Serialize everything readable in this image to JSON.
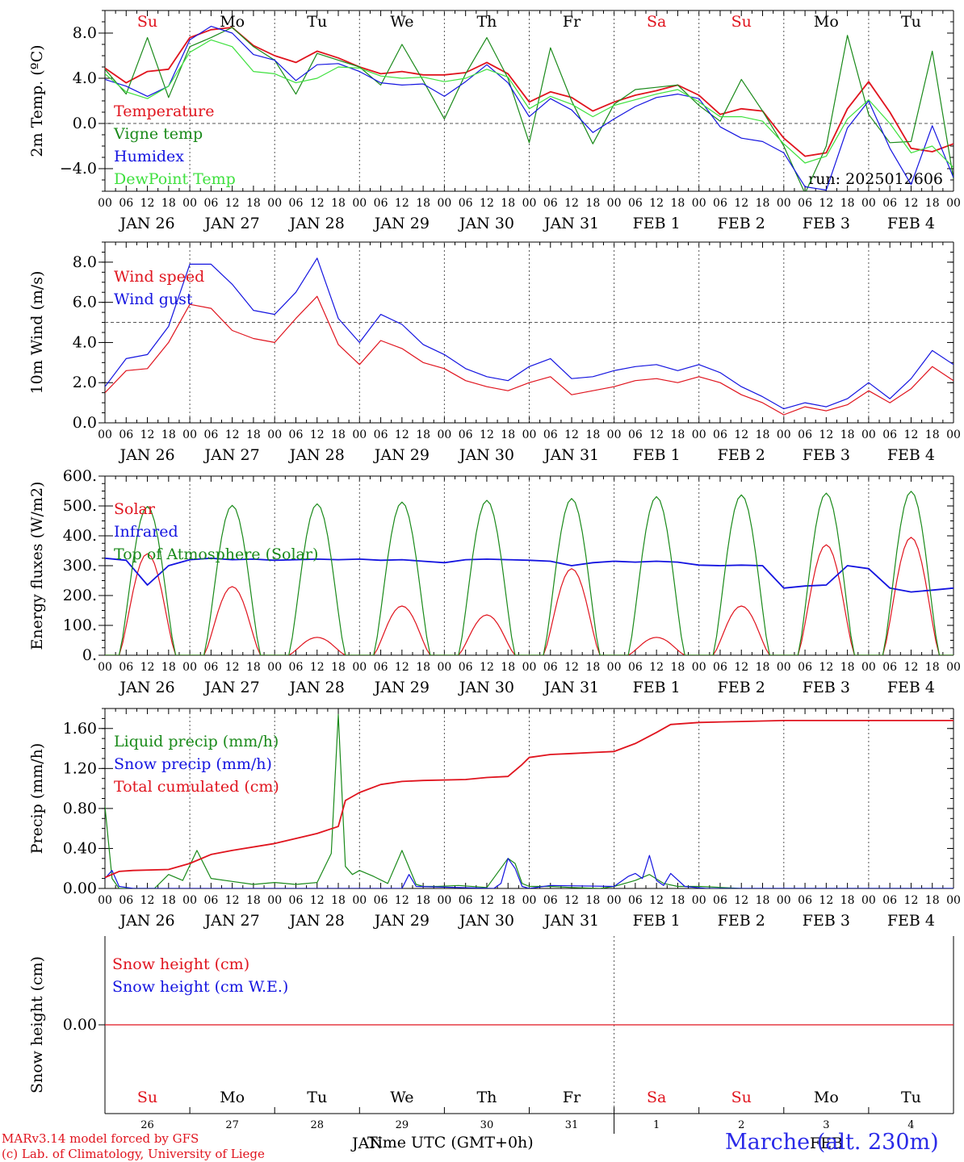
{
  "chart_data": [
    {
      "type": "line",
      "ylabel": "2m Temp. (ºC)",
      "yticks": [
        -4.0,
        0.0,
        4.0,
        8.0
      ],
      "ylim": [
        -6.0,
        10.0
      ],
      "ref_line": 0.0,
      "x_unit": "hours since JAN 26 00 UTC",
      "annotation": "run: 2025012606",
      "legend": [
        "Temperature",
        "Vigne temp",
        "Humidex",
        "DewPoint Temp"
      ],
      "series": [
        {
          "name": "Temperature",
          "color": "#e0141e",
          "x": [
            0,
            6,
            12,
            18,
            24,
            30,
            36,
            42,
            48,
            54,
            60,
            66,
            72,
            78,
            84,
            90,
            96,
            102,
            108,
            114,
            120,
            126,
            132,
            138,
            144,
            150,
            156,
            162,
            168,
            174,
            180,
            186,
            192,
            198,
            204,
            210,
            216,
            222,
            228,
            234,
            240
          ],
          "y": [
            4.9,
            3.6,
            4.6,
            4.8,
            7.6,
            8.3,
            8.5,
            6.9,
            6.0,
            5.4,
            6.4,
            5.8,
            5.0,
            4.4,
            4.6,
            4.3,
            4.3,
            4.5,
            5.4,
            4.4,
            1.9,
            2.8,
            2.3,
            1.1,
            1.9,
            2.5,
            2.9,
            3.4,
            2.5,
            0.8,
            1.3,
            1.1,
            -1.3,
            -2.9,
            -2.6,
            1.3,
            3.7,
            1.0,
            -2.2,
            -2.5,
            -1.8
          ]
        },
        {
          "name": "Vigne temp",
          "color": "#1a8a1a",
          "x": [
            0,
            6,
            12,
            18,
            24,
            30,
            36,
            42,
            48,
            54,
            60,
            66,
            72,
            78,
            84,
            90,
            96,
            102,
            108,
            114,
            120,
            126,
            132,
            138,
            144,
            150,
            156,
            162,
            168,
            174,
            180,
            186,
            192,
            198,
            204,
            210,
            216,
            222,
            228,
            234,
            240
          ],
          "y": [
            4.8,
            2.6,
            7.6,
            2.3,
            6.8,
            7.6,
            8.5,
            6.8,
            5.6,
            2.6,
            6.2,
            5.6,
            5.0,
            3.4,
            7.0,
            3.8,
            0.4,
            4.4,
            7.6,
            4.0,
            -1.7,
            6.7,
            2.0,
            -1.8,
            1.7,
            3.0,
            3.2,
            3.4,
            1.6,
            0.2,
            3.9,
            1.1,
            -2.0,
            -6.2,
            -2.0,
            7.8,
            0.8,
            -1.7,
            -1.6,
            6.4,
            -4.9
          ]
        },
        {
          "name": "Humidex",
          "color": "#1414e0",
          "x": [
            0,
            6,
            12,
            18,
            24,
            30,
            36,
            42,
            48,
            54,
            60,
            66,
            72,
            78,
            84,
            90,
            96,
            102,
            108,
            114,
            120,
            126,
            132,
            138,
            144,
            150,
            156,
            162,
            168,
            174,
            180,
            186,
            192,
            198,
            204,
            210,
            216,
            222,
            228,
            234,
            240
          ],
          "y": [
            3.9,
            3.3,
            2.4,
            3.3,
            7.4,
            8.6,
            8.0,
            6.1,
            5.6,
            3.8,
            5.2,
            5.3,
            4.6,
            3.6,
            3.4,
            3.5,
            2.4,
            3.7,
            5.2,
            3.6,
            0.6,
            2.2,
            1.2,
            -0.8,
            0.4,
            1.5,
            2.3,
            2.6,
            2.2,
            -0.3,
            -1.3,
            -1.6,
            -2.6,
            -5.6,
            -5.9,
            -0.4,
            2.0,
            -2.2,
            -5.4,
            -0.2,
            -4.8
          ]
        },
        {
          "name": "DewPoint Temp",
          "color": "#3ee03e",
          "x": [
            0,
            6,
            12,
            18,
            24,
            30,
            36,
            42,
            48,
            54,
            60,
            66,
            72,
            78,
            84,
            90,
            96,
            102,
            108,
            114,
            120,
            126,
            132,
            138,
            144,
            150,
            156,
            162,
            168,
            174,
            180,
            186,
            192,
            198,
            204,
            210,
            216,
            222,
            228,
            234,
            240
          ],
          "y": [
            4.4,
            2.8,
            2.2,
            3.3,
            6.3,
            7.4,
            6.8,
            4.6,
            4.4,
            3.6,
            4.0,
            5.0,
            4.9,
            4.2,
            4.0,
            4.1,
            3.7,
            4.0,
            4.8,
            4.1,
            1.3,
            2.4,
            1.7,
            0.6,
            1.6,
            2.1,
            2.6,
            3.0,
            1.9,
            0.6,
            0.6,
            0.2,
            -1.8,
            -3.5,
            -2.9,
            0.4,
            2.1,
            0.0,
            -2.6,
            -2.0,
            -3.9
          ]
        }
      ]
    },
    {
      "type": "line",
      "ylabel": "10m Wind (m/s)",
      "yticks": [
        0.0,
        2.0,
        4.0,
        6.0,
        8.0
      ],
      "ylim": [
        0.0,
        9.0
      ],
      "ref_line": 5.0,
      "legend": [
        "Wind speed",
        "Wind gust"
      ],
      "series": [
        {
          "name": "Wind speed",
          "color": "#e0141e",
          "x": [
            0,
            6,
            12,
            18,
            24,
            30,
            36,
            42,
            48,
            54,
            60,
            66,
            72,
            78,
            84,
            90,
            96,
            102,
            108,
            114,
            120,
            126,
            132,
            138,
            144,
            150,
            156,
            162,
            168,
            174,
            180,
            186,
            192,
            198,
            204,
            210,
            216,
            222,
            228,
            234,
            240
          ],
          "y": [
            1.5,
            2.6,
            2.7,
            4.0,
            5.9,
            5.7,
            4.6,
            4.2,
            4.0,
            5.2,
            6.3,
            3.9,
            2.9,
            4.1,
            3.7,
            3.0,
            2.7,
            2.1,
            1.8,
            1.6,
            2.0,
            2.3,
            1.4,
            1.6,
            1.8,
            2.1,
            2.2,
            2.0,
            2.3,
            2.0,
            1.4,
            1.0,
            0.4,
            0.8,
            0.6,
            0.9,
            1.6,
            1.0,
            1.7,
            2.8,
            2.1
          ]
        },
        {
          "name": "Wind gust",
          "color": "#1414e0",
          "x": [
            0,
            6,
            12,
            18,
            24,
            30,
            36,
            42,
            48,
            54,
            60,
            66,
            72,
            78,
            84,
            90,
            96,
            102,
            108,
            114,
            120,
            126,
            132,
            138,
            144,
            150,
            156,
            162,
            168,
            174,
            180,
            186,
            192,
            198,
            204,
            210,
            216,
            222,
            228,
            234,
            240
          ],
          "y": [
            1.8,
            3.2,
            3.4,
            4.8,
            7.9,
            7.9,
            6.9,
            5.6,
            5.4,
            6.5,
            8.2,
            5.2,
            4.0,
            5.4,
            4.9,
            3.9,
            3.4,
            2.7,
            2.3,
            2.1,
            2.8,
            3.2,
            2.2,
            2.3,
            2.6,
            2.8,
            2.9,
            2.6,
            2.9,
            2.5,
            1.8,
            1.3,
            0.7,
            1.0,
            0.8,
            1.2,
            2.0,
            1.2,
            2.2,
            3.6,
            2.9
          ]
        }
      ]
    },
    {
      "type": "line",
      "ylabel": "Energy fluxes (W/m2)",
      "yticks": [
        0,
        100,
        200,
        300,
        400,
        500,
        600
      ],
      "ytick_labels": [
        "0.",
        "100.",
        "200.",
        "300.",
        "400.",
        "500.",
        "600."
      ],
      "ylim": [
        0,
        600
      ],
      "legend": [
        "Solar",
        "Infrared",
        "Top of Atmosphere (Solar)"
      ],
      "series": [
        {
          "name": "Solar",
          "color": "#e0141e",
          "peaks": [
            340,
            230,
            60,
            165,
            135,
            290,
            60,
            165,
            370,
            395
          ],
          "peak_hour": 12
        },
        {
          "name": "Infrared",
          "color": "#1414e0",
          "x": [
            0,
            6,
            12,
            18,
            24,
            30,
            36,
            42,
            48,
            54,
            60,
            66,
            72,
            78,
            84,
            90,
            96,
            102,
            108,
            114,
            120,
            126,
            132,
            138,
            144,
            150,
            156,
            162,
            168,
            174,
            180,
            186,
            192,
            198,
            204,
            210,
            216,
            222,
            228,
            234,
            240
          ],
          "y": [
            325,
            318,
            235,
            300,
            320,
            325,
            320,
            322,
            318,
            320,
            322,
            320,
            322,
            318,
            320,
            315,
            310,
            320,
            322,
            320,
            318,
            315,
            300,
            310,
            315,
            312,
            315,
            312,
            302,
            300,
            302,
            300,
            225,
            232,
            235,
            300,
            290,
            225,
            212,
            218,
            225
          ]
        },
        {
          "name": "Top of Atmosphere (Solar)",
          "color": "#1a8a1a",
          "peaks": [
            498,
            502,
            507,
            513,
            519,
            525,
            531,
            537,
            543,
            549
          ],
          "peak_hour": 12
        }
      ]
    },
    {
      "type": "line",
      "ylabel": "Precip (mm/h)",
      "yticks": [
        0.0,
        0.4,
        0.8,
        1.2,
        1.6
      ],
      "ytick_labels": [
        "0.00",
        "0.40",
        "0.80",
        "1.20",
        "1.60"
      ],
      "ylim": [
        0.0,
        1.8
      ],
      "legend": [
        "Liquid precip (mm/h)",
        "Snow precip (mm/h)",
        "Total cumulated (cm)"
      ],
      "series": [
        {
          "name": "Liquid precip (mm/h)",
          "color": "#1a8a1a",
          "x": [
            0,
            2,
            4,
            8,
            14,
            18,
            22,
            26,
            30,
            36,
            42,
            48,
            54,
            60,
            64,
            66,
            68,
            70,
            72,
            76,
            80,
            84,
            88,
            90,
            94,
            100,
            108,
            114,
            116,
            118,
            120,
            126,
            132,
            140,
            144,
            150,
            154,
            158,
            162,
            168,
            180,
            192,
            240
          ],
          "y": [
            0.82,
            0.1,
            0.0,
            0.0,
            0.0,
            0.14,
            0.08,
            0.38,
            0.1,
            0.07,
            0.04,
            0.06,
            0.04,
            0.06,
            0.35,
            1.74,
            0.22,
            0.14,
            0.18,
            0.12,
            0.05,
            0.38,
            0.04,
            0.02,
            0.02,
            0.03,
            0.01,
            0.3,
            0.25,
            0.05,
            0.02,
            0.02,
            0.01,
            0.0,
            0.02,
            0.08,
            0.14,
            0.05,
            0.02,
            0.02,
            0.0,
            0.0,
            0.0
          ]
        },
        {
          "name": "Snow precip (mm/h)",
          "color": "#1414e0",
          "x": [
            0,
            2,
            4,
            8,
            84,
            86,
            88,
            110,
            112,
            114,
            116,
            118,
            120,
            126,
            144,
            148,
            150,
            152,
            154,
            156,
            158,
            160,
            164,
            170,
            240
          ],
          "y": [
            0.1,
            0.18,
            0.02,
            0.0,
            0.0,
            0.14,
            0.02,
            0.0,
            0.05,
            0.3,
            0.2,
            0.02,
            0.0,
            0.03,
            0.02,
            0.12,
            0.15,
            0.1,
            0.33,
            0.08,
            0.03,
            0.15,
            0.02,
            0.0,
            0.0
          ]
        },
        {
          "name": "Total cumulated (cm)",
          "color": "#e0141e",
          "x": [
            0,
            4,
            8,
            18,
            24,
            30,
            36,
            48,
            60,
            66,
            68,
            72,
            78,
            84,
            90,
            102,
            108,
            114,
            118,
            120,
            126,
            132,
            138,
            144,
            150,
            156,
            160,
            168,
            180,
            192,
            240
          ],
          "y": [
            0.11,
            0.17,
            0.18,
            0.19,
            0.25,
            0.34,
            0.38,
            0.45,
            0.55,
            0.62,
            0.88,
            0.96,
            1.04,
            1.07,
            1.08,
            1.09,
            1.11,
            1.12,
            1.24,
            1.31,
            1.34,
            1.35,
            1.36,
            1.37,
            1.45,
            1.56,
            1.64,
            1.66,
            1.67,
            1.68,
            1.68
          ]
        }
      ]
    },
    {
      "type": "line",
      "ylabel": "Snow height (cm)",
      "yticks": [
        0.0
      ],
      "ytick_labels": [
        "0.00"
      ],
      "legend": [
        "Snow height (cm)",
        "Snow height (cm W.E.)"
      ],
      "series": [
        {
          "name": "Snow height (cm)",
          "color": "#e0141e",
          "x": [
            0,
            240
          ],
          "y": [
            0,
            0
          ]
        }
      ]
    }
  ],
  "x_axis": {
    "hour_labels": [
      "00",
      "06",
      "12",
      "18"
    ],
    "dates": [
      "JAN 26",
      "JAN 27",
      "JAN 28",
      "JAN 29",
      "JAN 30",
      "JAN 31",
      "FEB  1",
      "FEB  2",
      "FEB  3",
      "FEB  4"
    ],
    "day_names": [
      "Su",
      "Mo",
      "Tu",
      "We",
      "Th",
      "Fr",
      "Sa",
      "Su",
      "Mo",
      "Tu"
    ],
    "day_numbers": [
      "26",
      "27",
      "28",
      "29",
      "30",
      "31",
      "1",
      "2",
      "3",
      "4"
    ],
    "months": [
      "JAN",
      "FEB"
    ],
    "day_colors": [
      "#e0141e",
      "#000000",
      "#000000",
      "#000000",
      "#000000",
      "#000000",
      "#e0141e",
      "#e0141e",
      "#000000",
      "#000000"
    ]
  },
  "footer": {
    "model": "MARv3.14 model forced by GFS",
    "copyright": "(c) Lab. of Climatology, University of Liege",
    "xtitle": "Time UTC (GMT+0h)",
    "station": "Marche (alt. 230m)"
  }
}
